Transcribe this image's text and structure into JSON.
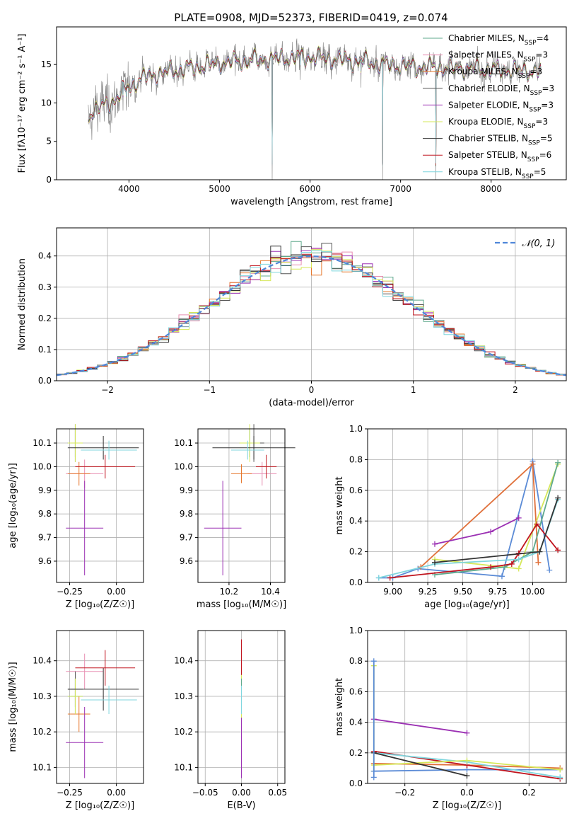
{
  "title": "PLATE=0908, MJD=52373, FIBERID=0419, z=0.074",
  "colors": {
    "chabrier_miles": "#5fa98c",
    "salpeter_miles": "#e88fb2",
    "kroupa_miles": "#e6782e",
    "chabrier_elodie": "#555555",
    "salpeter_elodie": "#9b30b3",
    "kroupa_elodie": "#d6e85a",
    "chabrier_stelib": "#333333",
    "salpeter_stelib": "#c0141e",
    "kroupa_stelib": "#7fd6de",
    "data_spectrum": "#808080",
    "normal_curve": "#4f86d9",
    "blue_mw": "#5b8bd6",
    "orange_mw": "#e0703a"
  },
  "chart_data": [
    {
      "id": "spectrum",
      "type": "line",
      "title": "PLATE=0908, MJD=52373, FIBERID=0419, z=0.074",
      "xlabel": "wavelength [Angstrom, rest frame]",
      "ylabel": "Flux [fλ10⁻¹⁷ erg cm⁻² s⁻¹ A⁻¹]",
      "xlim": [
        3200,
        8830
      ],
      "ylim": [
        0,
        19.9
      ],
      "xticks": [
        "4000",
        "5000",
        "6000",
        "7000",
        "8000"
      ],
      "yticks": [
        "0",
        "5",
        "10",
        "15"
      ],
      "grid": false,
      "legend_position": "top-right",
      "legend": [
        {
          "label": "Chabrier MILES, N",
          "sub": "SSP",
          "suffix": "=4",
          "color_key": "chabrier_miles"
        },
        {
          "label": "Salpeter MILES, N",
          "sub": "SSP",
          "suffix": "=3",
          "color_key": "salpeter_miles"
        },
        {
          "label": "Kroupa MILES, N",
          "sub": "SSP",
          "suffix": "=3",
          "color_key": "kroupa_miles"
        },
        {
          "label": "Chabrier ELODIE, N",
          "sub": "SSP",
          "suffix": "=3",
          "color_key": "chabrier_elodie"
        },
        {
          "label": "Salpeter ELODIE, N",
          "sub": "SSP",
          "suffix": "=3",
          "color_key": "salpeter_elodie"
        },
        {
          "label": "Kroupa ELODIE, N",
          "sub": "SSP",
          "suffix": "=3",
          "color_key": "kroupa_elodie"
        },
        {
          "label": "Chabrier STELIB, N",
          "sub": "SSP",
          "suffix": "=5",
          "color_key": "chabrier_stelib"
        },
        {
          "label": "Salpeter STELIB, N",
          "sub": "SSP",
          "suffix": "=6",
          "color_key": "salpeter_stelib"
        },
        {
          "label": "Kroupa STELIB, N",
          "sub": "SSP",
          "suffix": "=5",
          "color_key": "kroupa_stelib"
        }
      ],
      "continuum_nodes": [
        [
          3550,
          8.5
        ],
        [
          3700,
          9.5
        ],
        [
          3850,
          10.5
        ],
        [
          4000,
          12.2
        ],
        [
          4200,
          13.5
        ],
        [
          4500,
          14.2
        ],
        [
          5000,
          15.2
        ],
        [
          5500,
          15.7
        ],
        [
          6000,
          16.0
        ],
        [
          6500,
          15.5
        ],
        [
          7000,
          14.8
        ],
        [
          7500,
          14.6
        ],
        [
          8000,
          14.4
        ],
        [
          8400,
          14.2
        ],
        [
          8550,
          14.0
        ]
      ],
      "spikes": [
        [
          3935,
          9.0
        ],
        [
          3970,
          9.0
        ],
        [
          5580,
          0.0
        ],
        [
          6800,
          0.0
        ],
        [
          7390,
          0.0
        ],
        [
          4300,
          11.0
        ],
        [
          5175,
          13.5
        ],
        [
          5890,
          13.0
        ],
        [
          6563,
          12.0
        ],
        [
          7600,
          13.0
        ]
      ]
    },
    {
      "id": "residuals",
      "type": "histogram",
      "xlabel": "(data-model)/error",
      "ylabel": "Normed distribution",
      "xlim": [
        -2.5,
        2.5
      ],
      "ylim": [
        0,
        0.49
      ],
      "xticks": [
        "−2",
        "−1",
        "0",
        "1",
        "2"
      ],
      "yticks": [
        "0.0",
        "0.1",
        "0.2",
        "0.3",
        "0.4"
      ],
      "grid": true,
      "legend_position": "top-right",
      "legend": [
        {
          "label": "𝒩(0, 1)",
          "style": "dashed",
          "color_key": "normal_curve"
        }
      ],
      "bin_width": 0.1,
      "mean_curve": "normal(0,1)"
    },
    {
      "id": "age_vs_Z",
      "type": "errorbar",
      "xlabel": "Z [log₁₀(Z/Z☉)]",
      "ylabel": "age  [log₁₀(age/yr)]",
      "xlim": [
        -0.32,
        0.145
      ],
      "ylim": [
        9.51,
        10.16
      ],
      "xticks": [
        -0.25,
        0.0
      ],
      "xtick_labels": [
        "−0.25",
        "0.00"
      ],
      "yticks": [
        "9.6",
        "9.7",
        "9.8",
        "9.9",
        "10.0",
        "10.1"
      ],
      "grid": true,
      "points": [
        {
          "color_key": "chabrier_miles",
          "x": -0.22,
          "xerr": 0.04,
          "y": 10.1,
          "yerr": 0.06
        },
        {
          "color_key": "salpeter_miles",
          "x": -0.17,
          "xerr": 0.1,
          "y": 9.97,
          "yerr": 0.06
        },
        {
          "color_key": "kroupa_miles",
          "x": -0.2,
          "xerr": 0.06,
          "y": 9.97,
          "yerr": 0.05
        },
        {
          "color_key": "chabrier_elodie",
          "x": -0.22,
          "xerr": 0.04,
          "y": 10.1,
          "yerr": 0.08
        },
        {
          "color_key": "salpeter_elodie",
          "x": -0.17,
          "xerr": 0.1,
          "y": 9.74,
          "yerr": 0.2
        },
        {
          "color_key": "kroupa_elodie",
          "x": -0.22,
          "xerr": 0.04,
          "y": 10.1,
          "yerr": 0.08
        },
        {
          "color_key": "chabrier_stelib",
          "x": -0.07,
          "xerr": 0.19,
          "y": 10.08,
          "yerr": 0.05
        },
        {
          "color_key": "salpeter_stelib",
          "x": -0.06,
          "xerr": 0.16,
          "y": 10.0,
          "yerr": 0.05
        },
        {
          "color_key": "kroupa_stelib",
          "x": -0.04,
          "xerr": 0.15,
          "y": 10.07,
          "yerr": 0.04
        }
      ]
    },
    {
      "id": "age_vs_mass",
      "type": "errorbar",
      "xlabel": "mass [log₁₀(M/M☉)]",
      "xlim": [
        10.05,
        10.47
      ],
      "ylim": [
        9.51,
        10.16
      ],
      "xticks": [
        10.2,
        10.4
      ],
      "xtick_labels": [
        "10.2",
        "10.4"
      ],
      "yticks": [
        "9.6",
        "9.7",
        "9.8",
        "9.9",
        "10.0",
        "10.1"
      ],
      "grid": true,
      "points": [
        {
          "color_key": "chabrier_miles",
          "x": 10.3,
          "xerr": 0.05,
          "y": 10.1,
          "yerr": 0.06
        },
        {
          "color_key": "salpeter_miles",
          "x": 10.36,
          "xerr": 0.07,
          "y": 9.97,
          "yerr": 0.05
        },
        {
          "color_key": "kroupa_miles",
          "x": 10.26,
          "xerr": 0.05,
          "y": 9.97,
          "yerr": 0.04
        },
        {
          "color_key": "chabrier_elodie",
          "x": 10.32,
          "xerr": 0.05,
          "y": 10.1,
          "yerr": 0.08
        },
        {
          "color_key": "salpeter_elodie",
          "x": 10.17,
          "xerr": 0.09,
          "y": 9.74,
          "yerr": 0.2
        },
        {
          "color_key": "kroupa_elodie",
          "x": 10.3,
          "xerr": 0.05,
          "y": 10.1,
          "yerr": 0.08
        },
        {
          "color_key": "chabrier_stelib",
          "x": 10.32,
          "xerr": 0.2,
          "y": 10.08,
          "yerr": 0.05
        },
        {
          "color_key": "salpeter_stelib",
          "x": 10.38,
          "xerr": 0.05,
          "y": 10.0,
          "yerr": 0.05
        },
        {
          "color_key": "kroupa_stelib",
          "x": 10.29,
          "xerr": 0.08,
          "y": 10.07,
          "yerr": 0.04
        }
      ]
    },
    {
      "id": "mass_weight_vs_age",
      "type": "line",
      "xlabel": "age  [log₁₀(age/yr)]",
      "ylabel": "mass weight",
      "xlim": [
        8.82,
        10.24
      ],
      "ylim": [
        0,
        1
      ],
      "xticks": [
        9.0,
        9.5,
        10.0
      ],
      "xtick_labels": [
        "9.00",
        "9.25",
        "9.50",
        "9.75",
        "10.00"
      ],
      "xtick_values": [
        9.0,
        9.25,
        9.5,
        9.75,
        10.0
      ],
      "yticks": [
        "0.0",
        "0.2",
        "0.4",
        "0.6",
        "0.8",
        "1.0"
      ],
      "grid": true,
      "series": [
        {
          "color_key": "blue_mw",
          "x": [
            8.9,
            9.0,
            9.18,
            9.78,
            10.0,
            10.12
          ],
          "y": [
            0.03,
            0.03,
            0.09,
            0.04,
            0.79,
            0.08
          ]
        },
        {
          "color_key": "orange_mw",
          "x": [
            9.2,
            10.0,
            10.04
          ],
          "y": [
            0.1,
            0.77,
            0.13
          ]
        },
        {
          "color_key": "salpeter_elodie",
          "x": [
            9.3,
            9.7,
            9.9
          ],
          "y": [
            0.25,
            0.33,
            0.42
          ]
        },
        {
          "color_key": "kroupa_elodie",
          "x": [
            9.3,
            9.9,
            10.18
          ],
          "y": [
            0.15,
            0.09,
            0.77
          ]
        },
        {
          "color_key": "chabrier_miles",
          "x": [
            9.3,
            9.8,
            10.0,
            10.18
          ],
          "y": [
            0.05,
            0.1,
            0.2,
            0.78
          ]
        },
        {
          "color_key": "salpeter_stelib",
          "x": [
            8.98,
            9.7,
            9.85,
            9.9,
            10.03,
            10.18
          ],
          "y": [
            0.03,
            0.1,
            0.12,
            0.19,
            0.38,
            0.21
          ]
        },
        {
          "color_key": "kroupa_stelib",
          "x": [
            8.9,
            9.3,
            9.9,
            10.05,
            10.18
          ],
          "y": [
            0.03,
            0.12,
            0.15,
            0.2,
            0.54
          ]
        },
        {
          "color_key": "chabrier_stelib",
          "x": [
            9.3,
            10.05,
            10.18
          ],
          "y": [
            0.13,
            0.2,
            0.55
          ]
        }
      ]
    },
    {
      "id": "mass_vs_Z",
      "type": "errorbar",
      "xlabel": "Z [log₁₀(Z/Z☉)]",
      "ylabel": "mass [log₁₀(M/M☉)]",
      "xlim": [
        -0.32,
        0.145
      ],
      "ylim": [
        10.055,
        10.485
      ],
      "xticks": [
        -0.25,
        0.0
      ],
      "xtick_labels": [
        "−0.25",
        "0.00"
      ],
      "yticks": [
        "10.1",
        "10.2",
        "10.3",
        "10.4"
      ],
      "grid": true,
      "points": [
        {
          "color_key": "chabrier_miles",
          "x": -0.22,
          "xerr": 0.04,
          "y": 10.3,
          "yerr": 0.05
        },
        {
          "color_key": "salpeter_miles",
          "x": -0.17,
          "xerr": 0.1,
          "y": 10.37,
          "yerr": 0.05
        },
        {
          "color_key": "kroupa_miles",
          "x": -0.2,
          "xerr": 0.06,
          "y": 10.25,
          "yerr": 0.05
        },
        {
          "color_key": "chabrier_elodie",
          "x": -0.22,
          "xerr": 0.04,
          "y": 10.32,
          "yerr": 0.05
        },
        {
          "color_key": "salpeter_elodie",
          "x": -0.17,
          "xerr": 0.1,
          "y": 10.17,
          "yerr": 0.1
        },
        {
          "color_key": "kroupa_elodie",
          "x": -0.22,
          "xerr": 0.04,
          "y": 10.3,
          "yerr": 0.05
        },
        {
          "color_key": "chabrier_stelib",
          "x": -0.07,
          "xerr": 0.19,
          "y": 10.32,
          "yerr": 0.06
        },
        {
          "color_key": "salpeter_stelib",
          "x": -0.06,
          "xerr": 0.16,
          "y": 10.38,
          "yerr": 0.05
        },
        {
          "color_key": "kroupa_stelib",
          "x": -0.04,
          "xerr": 0.15,
          "y": 10.29,
          "yerr": 0.04
        }
      ]
    },
    {
      "id": "mass_vs_EBV",
      "type": "errorbar",
      "xlabel": "E(B-V)",
      "xlim": [
        -0.06,
        0.06
      ],
      "ylim": [
        10.055,
        10.485
      ],
      "xticks": [
        -0.05,
        0.0,
        0.05
      ],
      "xtick_labels": [
        "−0.05",
        "0.00",
        "0.05"
      ],
      "yticks": [
        "10.1",
        "10.2",
        "10.3",
        "10.4"
      ],
      "grid": true,
      "points": [
        {
          "color_key": "salpeter_elodie",
          "x": 0.0,
          "xerr": 0.0,
          "y": 10.17,
          "yerr": 0.1
        },
        {
          "color_key": "salpeter_stelib",
          "x": 0.0,
          "xerr": 0.0,
          "y": 10.38,
          "yerr": 0.08
        },
        {
          "color_key": "kroupa_elodie",
          "x": 0.0,
          "xerr": 0.0,
          "y": 10.3,
          "yerr": 0.06
        },
        {
          "color_key": "chabrier_miles",
          "x": 0.0,
          "xerr": 0.0,
          "y": 10.3,
          "yerr": 0.05
        },
        {
          "color_key": "kroupa_stelib",
          "x": 0.0,
          "xerr": 0.0,
          "y": 10.29,
          "yerr": 0.04
        }
      ]
    },
    {
      "id": "mass_weight_vs_Z",
      "type": "line",
      "xlabel": "Z [log₁₀(Z/Z☉)]",
      "ylabel": "mass weight",
      "xlim": [
        -0.32,
        0.32
      ],
      "ylim": [
        0,
        1
      ],
      "xticks": [
        -0.2,
        0.0,
        0.2
      ],
      "xtick_labels": [
        "−0.2",
        "0.0",
        "0.2"
      ],
      "yticks": [
        "0.0",
        "0.2",
        "0.4",
        "0.6",
        "0.8",
        "1.0"
      ],
      "grid": true,
      "series": [
        {
          "color_key": "salpeter_elodie",
          "x": [
            -0.3,
            0.0
          ],
          "y": [
            0.42,
            0.33
          ]
        },
        {
          "color_key": "kroupa_elodie",
          "x": [
            -0.3,
            -0.3
          ],
          "y": [
            0.08,
            0.77
          ]
        },
        {
          "color_key": "blue_mw",
          "x": [
            -0.3,
            0.0,
            0.3
          ],
          "y": [
            0.08,
            0.09,
            0.09
          ]
        },
        {
          "color_key": "orange_mw",
          "x": [
            -0.3,
            0.0,
            0.3
          ],
          "y": [
            0.13,
            0.12,
            0.1
          ]
        },
        {
          "color_key": "salpeter_stelib",
          "x": [
            -0.3,
            0.0,
            0.3
          ],
          "y": [
            0.21,
            0.12,
            0.03
          ]
        },
        {
          "color_key": "kroupa_stelib",
          "x": [
            -0.3,
            0.0,
            0.3
          ],
          "y": [
            0.2,
            0.14,
            0.04
          ]
        },
        {
          "color_key": "kroupa_elodie",
          "x": [
            -0.3,
            0.0,
            0.3
          ],
          "y": [
            0.12,
            0.15,
            0.09
          ]
        },
        {
          "color_key": "chabrier_stelib",
          "x": [
            -0.3,
            0.0
          ],
          "y": [
            0.2,
            0.05
          ]
        },
        {
          "color_key": "blue_mw",
          "x": [
            -0.3,
            -0.3
          ],
          "y": [
            0.04,
            0.8
          ]
        }
      ]
    }
  ]
}
